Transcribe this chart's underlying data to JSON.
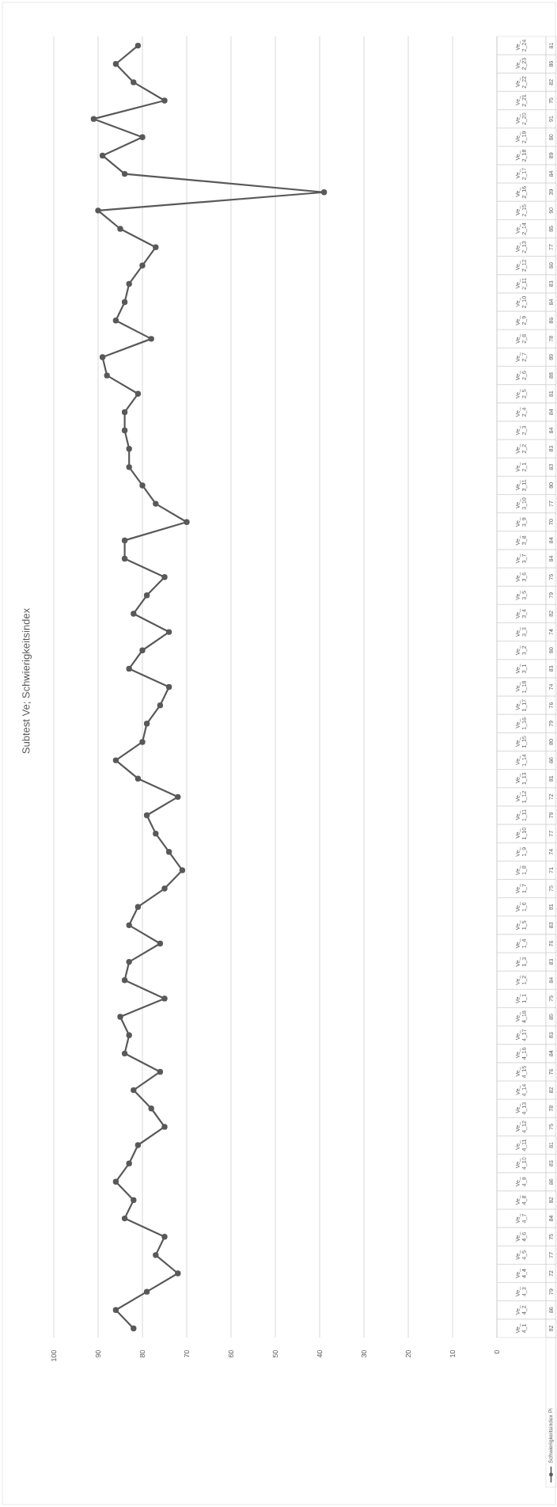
{
  "chart_data": {
    "type": "line",
    "title": "Subtest Ve; Schwierigkeitsindex",
    "orientation": "horizontal",
    "categories": [
      "Ve_2_24",
      "Ve_2_23",
      "Ve_2_22",
      "Ve_2_21",
      "Ve_2_20",
      "Ve_2_19",
      "Ve_2_18",
      "Ve_2_17",
      "Ve_2_16",
      "Ve_2_15",
      "Ve_2_14",
      "Ve_2_13",
      "Ve_2_12",
      "Ve_2_11",
      "Ve_2_10",
      "Ve_2_9",
      "Ve_2_8",
      "Ve_2_7",
      "Ve_2_6",
      "Ve_2_5",
      "Ve_2_4",
      "Ve_2_3",
      "Ve_2_2",
      "Ve_2_1",
      "Ve_3_11",
      "Ve_3_10",
      "Ve_3_9",
      "Ve_3_8",
      "Ve_3_7",
      "Ve_3_6",
      "Ve_3_5",
      "Ve_3_4",
      "Ve_3_3",
      "Ve_3_2",
      "Ve_3_1",
      "Ve_1_18",
      "Ve_1_17",
      "Ve_1_16",
      "Ve_1_15",
      "Ve_1_14",
      "Ve_1_13",
      "Ve_1_12",
      "Ve_1_11",
      "Ve_1_10",
      "Ve_1_9",
      "Ve_1_8",
      "Ve_1_7",
      "Ve_1_6",
      "Ve_1_5",
      "Ve_1_4",
      "Ve_1_3",
      "Ve_1_2",
      "Ve_1_1",
      "Ve_4_18",
      "Ve_4_17",
      "Ve_4_16",
      "Ve_4_15",
      "Ve_4_14",
      "Ve_4_13",
      "Ve_4_12",
      "Ve_4_11",
      "Ve_4_10",
      "Ve_4_9",
      "Ve_4_8",
      "Ve_4_7",
      "Ve_4_6",
      "Ve_4_5",
      "Ve_4_4",
      "Ve_4_3",
      "Ve_4_2",
      "Ve_4_1"
    ],
    "series": [
      {
        "name": "Schwierigkeitsindex Pi",
        "color": "#595959",
        "values": [
          81,
          86,
          82,
          75,
          91,
          80,
          89,
          84,
          39,
          90,
          85,
          77,
          80,
          83,
          84,
          86,
          78,
          89,
          88,
          81,
          84,
          84,
          83,
          83,
          80,
          77,
          70,
          84,
          84,
          75,
          79,
          82,
          74,
          80,
          83,
          74,
          76,
          79,
          80,
          86,
          81,
          72,
          79,
          77,
          74,
          71,
          75,
          81,
          83,
          76,
          83,
          84,
          75,
          85,
          83,
          84,
          76,
          82,
          78,
          75,
          81,
          83,
          86,
          82,
          84,
          75,
          77,
          72,
          79,
          86,
          82
        ]
      }
    ],
    "xlim": [
      100,
      0
    ],
    "xticks": [
      100,
      90,
      80,
      70,
      60,
      50,
      40,
      30,
      20,
      10,
      0
    ],
    "grid": "x",
    "legend": "bottom",
    "marker": "circle",
    "line_style": "solid",
    "data_labels": true
  }
}
